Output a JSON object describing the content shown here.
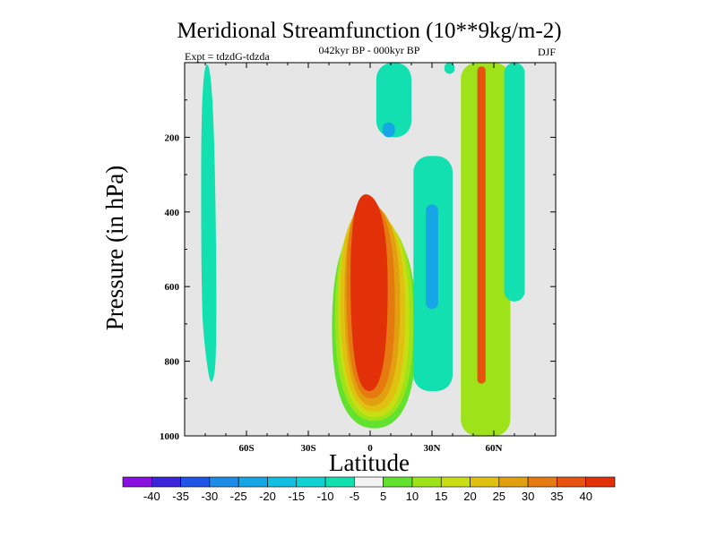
{
  "chart_data": {
    "type": "heatmap",
    "title": "Meridional Streamfunction (10**9kg/m-2)",
    "subtitle": "042kyr BP - 000kyr BP",
    "left_label": "Expt = tdzdG-tdzda",
    "right_label": "DJF",
    "xlabel": "Latitude",
    "ylabel": "Pressure (in hPa)",
    "xlim": [
      -90,
      90
    ],
    "ylim": [
      1000,
      0
    ],
    "x_ticks": [
      {
        "value": -60,
        "label": "60S"
      },
      {
        "value": -30,
        "label": "30S"
      },
      {
        "value": 0,
        "label": "0"
      },
      {
        "value": 30,
        "label": "30N"
      },
      {
        "value": 60,
        "label": "60N"
      }
    ],
    "y_ticks": [
      {
        "value": 200,
        "label": "200"
      },
      {
        "value": 400,
        "label": "400"
      },
      {
        "value": 600,
        "label": "600"
      },
      {
        "value": 800,
        "label": "800"
      },
      {
        "value": 1000,
        "label": "1000"
      }
    ],
    "background_color": "#e6e6e6",
    "colorbar": {
      "levels": [
        "-40",
        "-35",
        "-30",
        "-25",
        "-20",
        "-15",
        "-10",
        "-5",
        "5",
        "10",
        "15",
        "20",
        "25",
        "30",
        "35",
        "40"
      ],
      "colors": [
        "#8a10e0",
        "#3a26d8",
        "#1e55e6",
        "#1e8be6",
        "#16a6e6",
        "#12bfe0",
        "#10d2d2",
        "#12e0b0",
        "#f2f2f2",
        "#62e22e",
        "#9ee21a",
        "#c8de12",
        "#e0c010",
        "#e2a010",
        "#e47a10",
        "#e85210",
        "#e23008"
      ]
    },
    "features": [
      {
        "name": "cell-60S",
        "center_lat": -78,
        "peak_value": -7,
        "levels": [
          {
            "value": -7,
            "segments": [
              [
                -82,
                0,
                -76,
                10
              ],
              [
                -82,
                640,
                -74,
                780
              ],
              [
                -80,
                780,
                -77,
                880
              ]
            ]
          }
        ]
      },
      {
        "name": "hadley-equatorial",
        "center_lat": 0,
        "peak_value": 40,
        "levels": [
          {
            "value": 5,
            "segments": [
              [
                -18,
                420,
                22,
                440
              ],
              [
                -19,
                980,
                23,
                980
              ]
            ]
          },
          {
            "value": 10,
            "segments": [
              [
                -17,
                400,
                21,
                430
              ],
              [
                -17,
                960,
                21,
                960
              ]
            ]
          },
          {
            "value": 15,
            "segments": [
              [
                -16,
                380,
                19,
                420
              ],
              [
                -15,
                950,
                19,
                950
              ]
            ]
          },
          {
            "value": 20,
            "segments": [
              [
                -15,
                370,
                17,
                410
              ],
              [
                -14,
                930,
                17,
                940
              ]
            ]
          },
          {
            "value": 25,
            "segments": [
              [
                -13,
                360,
                15,
                400
              ],
              [
                -12,
                920,
                14,
                920
              ]
            ]
          },
          {
            "value": 30,
            "segments": [
              [
                -12,
                350,
                12,
                390
              ],
              [
                -11,
                900,
                12,
                900
              ]
            ]
          },
          {
            "value": 40,
            "segments": [
              [
                -10,
                330,
                9,
                380
              ],
              [
                -9,
                880,
                8,
                880
              ]
            ]
          }
        ]
      },
      {
        "name": "cell-10N-upper",
        "center_lat": 9,
        "peak_value": -25,
        "levels": [
          {
            "value": -7,
            "segments": [
              [
                3,
                0,
                20,
                200
              ]
            ]
          },
          {
            "value": -25,
            "segments": [
              [
                6,
                160,
                12,
                200
              ]
            ]
          }
        ]
      },
      {
        "name": "cell-30N",
        "center_lat": 30,
        "peak_value": -22,
        "levels": [
          {
            "value": -7,
            "segments": [
              [
                21,
                250,
                40,
                880
              ]
            ]
          },
          {
            "value": -22,
            "segments": [
              [
                27,
                380,
                33,
                660
              ]
            ]
          }
        ]
      },
      {
        "name": "ferrel-60N",
        "center_lat": 55,
        "peak_value": 38,
        "levels": [
          {
            "value": 10,
            "segments": [
              [
                44,
                0,
                68,
                1000
              ]
            ]
          },
          {
            "value": 38,
            "segments": [
              [
                52,
                10,
                56,
                860
              ]
            ]
          }
        ]
      },
      {
        "name": "polar-70N",
        "center_lat": 70,
        "peak_value": -7,
        "levels": [
          {
            "value": -7,
            "segments": [
              [
                65,
                0,
                75,
                640
              ]
            ]
          }
        ]
      },
      {
        "name": "minor-35N",
        "center_lat": 38,
        "peak_value": -7,
        "levels": [
          {
            "value": -7,
            "segments": [
              [
                36,
                0,
                41,
                30
              ]
            ]
          }
        ]
      }
    ]
  }
}
